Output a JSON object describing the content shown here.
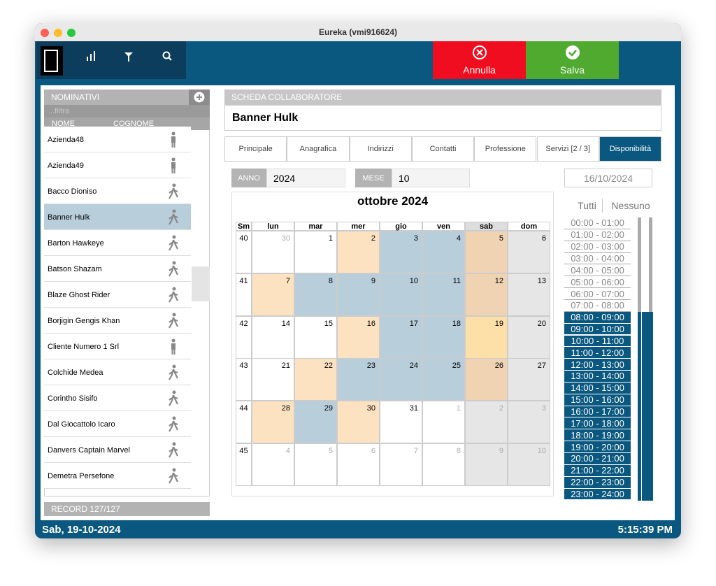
{
  "window": {
    "title": "Eureka (vmi916624)"
  },
  "toolbar": {
    "cancel": "Annulla",
    "save": "Salva"
  },
  "sidebar": {
    "header": "NOMINATIVI",
    "filter": "...filtra",
    "columns": [
      "NOME",
      "COGNOME"
    ],
    "items": [
      "Azienda48",
      "Azienda49",
      "Bacco Dioniso",
      "Banner Hulk",
      "Barton Hawkeye",
      "Batson Shazam",
      "Blaze Ghost Rider",
      "Borjigin Gengis Khan",
      "Cliente Numero 1 Srl",
      "Colchide Medea",
      "Corintho Sisifo",
      "Dal Giocattolo Icaro",
      "Danvers Captain Marvel",
      "Demetra Persefone"
    ],
    "selected": 3,
    "record": "RECORD 127/127"
  },
  "form": {
    "header": "SCHEDA COLLABORATORE",
    "name": "Banner Hulk",
    "tabs": [
      "Principale",
      "Anagrafica",
      "Indirizzi",
      "Contatti",
      "Professione",
      "Servizi [2 / 3]",
      "Disponibilità"
    ],
    "active_tab": 6,
    "year_label": "ANNO",
    "year": "2024",
    "month_label": "MESE",
    "month": "10",
    "date": "16/10/2024"
  },
  "calendar": {
    "title": "ottobre 2024",
    "headers": [
      "Sm",
      "lun",
      "mar",
      "mer",
      "gio",
      "ven",
      "sab",
      "dom"
    ],
    "weeks": [
      {
        "week": 40,
        "days": [
          30,
          1,
          2,
          3,
          4,
          5,
          6
        ],
        "fills": [
          "#ffffff",
          "#ffffff",
          "#fde2c2",
          "#b8cedb",
          "#b8cedb",
          "#f0d3b2",
          "#e6e6e6"
        ]
      },
      {
        "week": 41,
        "days": [
          7,
          8,
          9,
          10,
          11,
          12,
          13
        ],
        "fills": [
          "#fde2c2",
          "#b8cedb",
          "#b8cedb",
          "#b8cedb",
          "#b8cedb",
          "#f0d3b2",
          "#e6e6e6"
        ]
      },
      {
        "week": 42,
        "days": [
          14,
          15,
          16,
          17,
          18,
          19,
          20
        ],
        "fills": [
          "#ffffff",
          "#ffffff",
          "#fde2c2",
          "#b8cedb",
          "#b8cedb",
          "#fde0a8",
          "#e6e6e6"
        ]
      },
      {
        "week": 43,
        "days": [
          21,
          22,
          23,
          24,
          25,
          26,
          27
        ],
        "fills": [
          "#ffffff",
          "#fde2c2",
          "#b8cedb",
          "#b8cedb",
          "#b8cedb",
          "#f0d3b2",
          "#e6e6e6"
        ]
      },
      {
        "week": 44,
        "days": [
          28,
          29,
          30,
          31,
          1,
          2,
          3
        ],
        "fills": [
          "#fde2c2",
          "#b8cedb",
          "#fde2c2",
          "#ffffff",
          "#ffffff",
          "#e6e6e6",
          "#e6e6e6"
        ]
      },
      {
        "week": 45,
        "days": [
          4,
          5,
          6,
          7,
          8,
          9,
          10
        ],
        "fills": [
          "#ffffff",
          "#ffffff",
          "#ffffff",
          "#ffffff",
          "#ffffff",
          "#e6e6e6",
          "#e6e6e6"
        ]
      }
    ]
  },
  "slots": {
    "all": "Tutti",
    "none": "Nessuno",
    "items": [
      {
        "label": "00:00 - 01:00",
        "selected": false
      },
      {
        "label": "01:00 - 02:00",
        "selected": false
      },
      {
        "label": "02:00 - 03:00",
        "selected": false
      },
      {
        "label": "03:00 - 04:00",
        "selected": false
      },
      {
        "label": "04:00 - 05:00",
        "selected": false
      },
      {
        "label": "05:00 - 06:00",
        "selected": false
      },
      {
        "label": "06:00 - 07:00",
        "selected": false
      },
      {
        "label": "07:00 - 08:00",
        "selected": false
      },
      {
        "label": "08:00 - 09:00",
        "selected": true
      },
      {
        "label": "09:00 - 10:00",
        "selected": true
      },
      {
        "label": "10:00 - 11:00",
        "selected": true
      },
      {
        "label": "11:00 - 12:00",
        "selected": true
      },
      {
        "label": "12:00 - 13:00",
        "selected": true
      },
      {
        "label": "13:00 - 14:00",
        "selected": true
      },
      {
        "label": "14:00 - 15:00",
        "selected": true
      },
      {
        "label": "15:00 - 16:00",
        "selected": true
      },
      {
        "label": "16:00 - 17:00",
        "selected": true
      },
      {
        "label": "17:00 - 18:00",
        "selected": true
      },
      {
        "label": "18:00 - 19:00",
        "selected": true
      },
      {
        "label": "19:00 - 20:00",
        "selected": true
      },
      {
        "label": "20:00 - 21:00",
        "selected": true
      },
      {
        "label": "21:00 - 22:00",
        "selected": true
      },
      {
        "label": "22:00 - 23:00",
        "selected": true
      },
      {
        "label": "23:00 - 24:00",
        "selected": true
      }
    ]
  },
  "footer": {
    "date": "Sab, 19-10-2024",
    "time": "5:15:39 PM"
  }
}
